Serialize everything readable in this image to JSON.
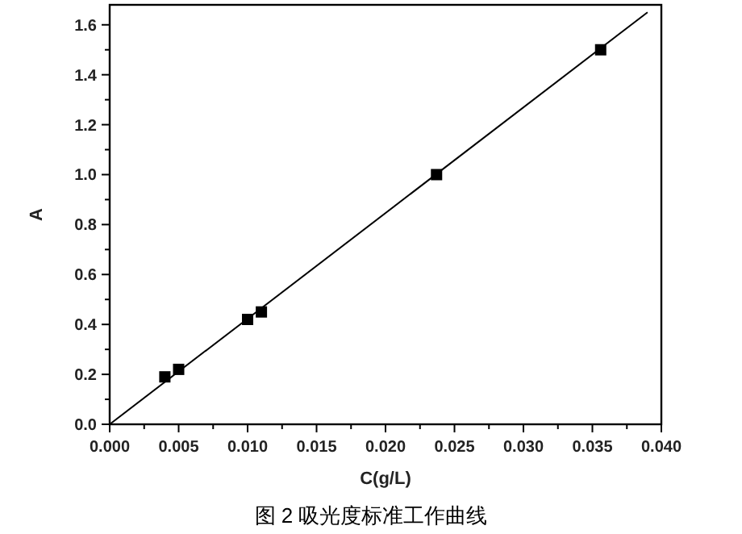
{
  "chart_data": {
    "type": "scatter",
    "title": "图 2 吸光度标准工作曲线",
    "xlabel": "C(g/L)",
    "ylabel": "A",
    "xlim": [
      0,
      0.04
    ],
    "ylim": [
      0,
      1.68
    ],
    "xticks": [
      {
        "value": 0,
        "label": "0.000"
      },
      {
        "value": 0.005,
        "label": "0.005"
      },
      {
        "value": 0.01,
        "label": "0.010"
      },
      {
        "value": 0.015,
        "label": "0.015"
      },
      {
        "value": 0.02,
        "label": "0.020"
      },
      {
        "value": 0.025,
        "label": "0.025"
      },
      {
        "value": 0.03,
        "label": "0.030"
      },
      {
        "value": 0.035,
        "label": "0.035"
      },
      {
        "value": 0.04,
        "label": "0.040"
      }
    ],
    "yticks": [
      {
        "value": 0,
        "label": "0.0"
      },
      {
        "value": 0.2,
        "label": "0.2"
      },
      {
        "value": 0.4,
        "label": "0.4"
      },
      {
        "value": 0.6,
        "label": "0.6"
      },
      {
        "value": 0.8,
        "label": "0.8"
      },
      {
        "value": 1.0,
        "label": "1.0"
      },
      {
        "value": 1.2,
        "label": "1.2"
      },
      {
        "value": 1.4,
        "label": "1.4"
      },
      {
        "value": 1.6,
        "label": "1.6"
      }
    ],
    "grid": false,
    "series": [
      {
        "marker": "square",
        "color": "#000000",
        "x": [
          0.004,
          0.005,
          0.01,
          0.011,
          0.0237,
          0.0356
        ],
        "values": [
          0.19,
          0.22,
          0.42,
          0.45,
          1.0,
          1.5
        ]
      },
      {
        "type": "line",
        "color": "#000000",
        "x": [
          0,
          0.039
        ],
        "values": [
          0,
          1.65
        ]
      }
    ]
  }
}
